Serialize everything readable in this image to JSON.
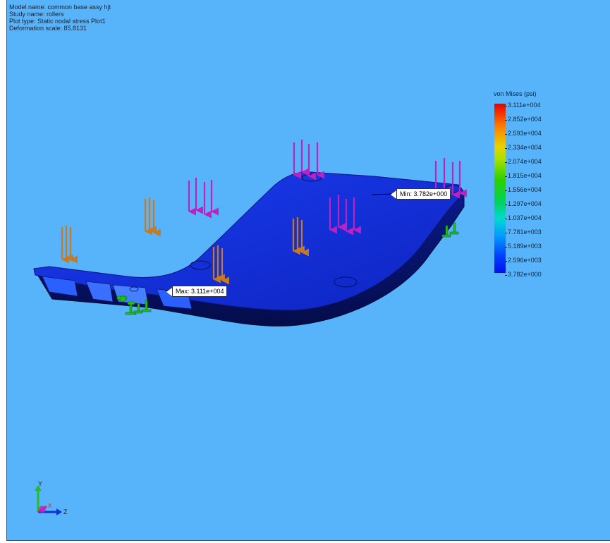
{
  "info": {
    "model_name": "Model name: common base assy hjt",
    "study_name": "Study name: rollers",
    "plot_type": "Plot type: Static nodal stress Plot1",
    "deformation_scale": "Deformation scale: 85.8131"
  },
  "legend": {
    "title": "von Mises (psi)",
    "ticks": [
      "3.111e+004",
      "2.852e+004",
      "2.593e+004",
      "2.334e+004",
      "2.074e+004",
      "1.815e+004",
      "1.556e+004",
      "1.297e+004",
      "1.037e+004",
      "7.781e+003",
      "5.189e+003",
      "2.596e+003",
      "3.782e+000"
    ]
  },
  "callouts": {
    "max": "Max: 3.111e+004",
    "min": "Min: 3.782e+000"
  },
  "triad": {
    "y": "Y",
    "x": "X",
    "z": "Z"
  },
  "colors": {
    "background": "#58b4fa",
    "part": "#1030d8",
    "force_arrow": "#c020c0",
    "gravity_arrow": "#c87a20",
    "fixture": "#20c020"
  }
}
